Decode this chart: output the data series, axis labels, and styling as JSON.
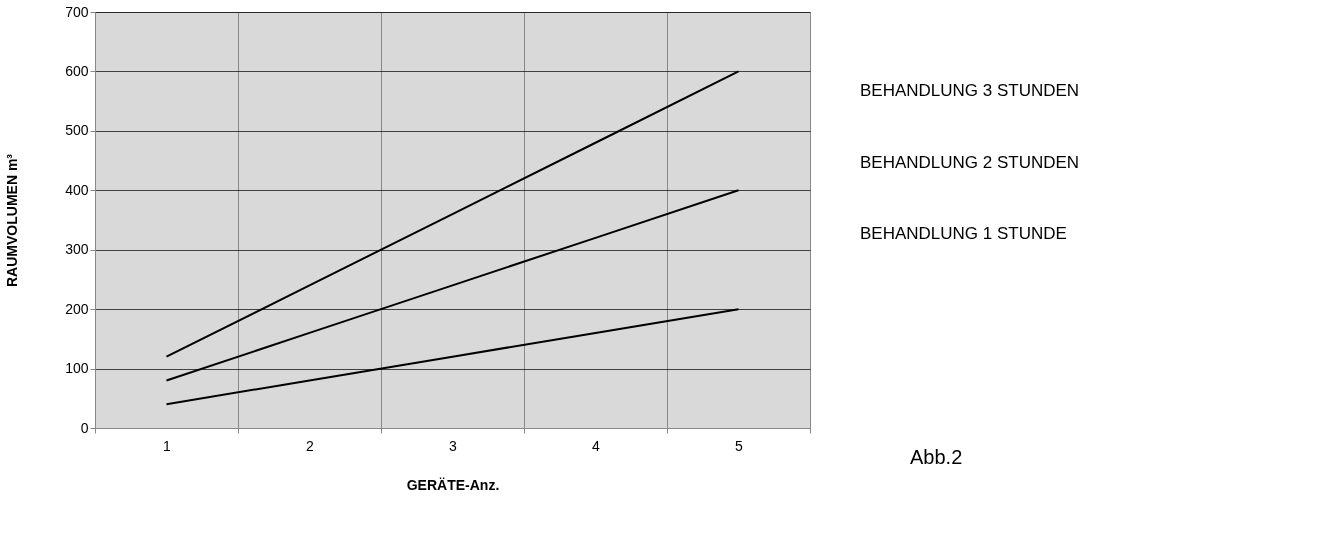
{
  "chart_data": {
    "type": "line",
    "xlabel": "GERÄTE-Anz.",
    "ylabel": "RAUMVOLUMEN m³",
    "categories": [
      "1",
      "2",
      "3",
      "4",
      "5"
    ],
    "series": [
      {
        "name": "BEHANDLUNG 3 STUNDEN",
        "color": "#000000",
        "values": [
          120,
          240,
          360,
          480,
          600
        ]
      },
      {
        "name": "BEHANDLUNG 2 STUNDEN",
        "color": "#000000",
        "values": [
          80,
          160,
          240,
          320,
          400
        ]
      },
      {
        "name": "BEHANDLUNG 1 STUNDE",
        "color": "#000000",
        "values": [
          40,
          80,
          120,
          160,
          200
        ]
      }
    ],
    "ylim": [
      0,
      700
    ],
    "yticks": [
      0,
      100,
      200,
      300,
      400,
      500,
      600,
      700
    ],
    "grid": true,
    "legend": "right",
    "marker": "none",
    "line_style": "solid",
    "annotations": [
      "Abb.2"
    ]
  }
}
